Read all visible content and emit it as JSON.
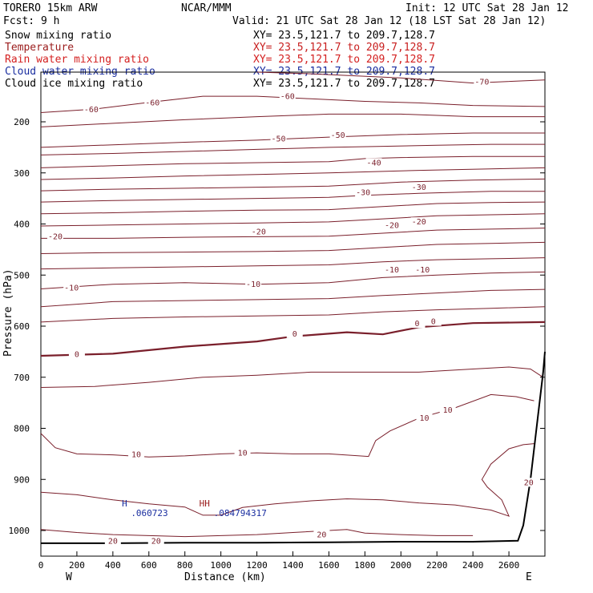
{
  "header": {
    "model": "TORERO  15km ARW",
    "org": "NCAR/MMM",
    "init": "Init: 12 UTC Sat 28 Jan 12",
    "fcst": "Fcst:    9 h",
    "valid": "Valid: 21 UTC Sat 28 Jan 12 (18 LST Sat 28 Jan 12)"
  },
  "fields": [
    {
      "name": "Snow mixing ratio",
      "xy": "XY=  23.5,121.7 to 209.7,128.7",
      "color": "#000000",
      "xy_color": "#000000"
    },
    {
      "name": "Temperature",
      "xy": "XY=  23.5,121.7 to 209.7,128.7",
      "color": "#9b1c1c",
      "xy_color": "#c81e1e"
    },
    {
      "name": "Rain water mixing ratio",
      "xy": "XY=  23.5,121.7 to 209.7,128.7",
      "color": "#d42020",
      "xy_color": "#d42020"
    },
    {
      "name": "Cloud water mixing ratio",
      "xy": "XY=  23.5,121.7 to 209.7,128.7",
      "color": "#1a2ea0",
      "xy_color": "#1a2ea0"
    },
    {
      "name": "Cloud ice mixing ratio",
      "xy": "XY=  23.5,121.7 to 209.7,128.7",
      "color": "#000000",
      "xy_color": "#000000"
    }
  ],
  "chart_data": {
    "type": "line",
    "title": "",
    "xlabel": "Distance (km)",
    "ylabel": "Pressure (hPa)",
    "xlim": [
      0,
      2800
    ],
    "ylim": [
      1050,
      100
    ],
    "x_ticks": [
      0,
      200,
      400,
      600,
      800,
      1000,
      1200,
      1400,
      1600,
      1800,
      2000,
      2200,
      2400,
      2600
    ],
    "y_ticks": [
      200,
      300,
      400,
      500,
      600,
      700,
      800,
      900,
      1000
    ],
    "x_end_labels": {
      "left": "W",
      "right": "E"
    },
    "line_color": "#7a1f2b",
    "terrain_color": "#000000",
    "contour_labels": [
      {
        "text": "-60",
        "x": 280,
        "p": 178
      },
      {
        "text": "-60",
        "x": 620,
        "p": 165
      },
      {
        "text": "-60",
        "x": 1370,
        "p": 152
      },
      {
        "text": "-70",
        "x": 2450,
        "p": 124
      },
      {
        "text": "-50",
        "x": 1320,
        "p": 235
      },
      {
        "text": "-50",
        "x": 1650,
        "p": 228
      },
      {
        "text": "-40",
        "x": 1850,
        "p": 282
      },
      {
        "text": "-30",
        "x": 1790,
        "p": 340
      },
      {
        "text": "-30",
        "x": 2100,
        "p": 330
      },
      {
        "text": "-20",
        "x": 80,
        "p": 427
      },
      {
        "text": "-20",
        "x": 1210,
        "p": 417
      },
      {
        "text": "-20",
        "x": 1950,
        "p": 405
      },
      {
        "text": "-20",
        "x": 2100,
        "p": 398
      },
      {
        "text": "-10",
        "x": 170,
        "p": 527
      },
      {
        "text": "-10",
        "x": 1180,
        "p": 520
      },
      {
        "text": "-10",
        "x": 1950,
        "p": 492
      },
      {
        "text": "-10",
        "x": 2120,
        "p": 492
      },
      {
        "text": "0",
        "x": 200,
        "p": 657
      },
      {
        "text": "0",
        "x": 1410,
        "p": 617
      },
      {
        "text": "0",
        "x": 2090,
        "p": 597
      },
      {
        "text": "0",
        "x": 2180,
        "p": 593
      },
      {
        "text": "10",
        "x": 530,
        "p": 853
      },
      {
        "text": "10",
        "x": 1120,
        "p": 850
      },
      {
        "text": "10",
        "x": 2130,
        "p": 782
      },
      {
        "text": "10",
        "x": 2260,
        "p": 766
      },
      {
        "text": "20",
        "x": 400,
        "p": 1023
      },
      {
        "text": "20",
        "x": 640,
        "p": 1023
      },
      {
        "text": "20",
        "x": 1560,
        "p": 1010
      },
      {
        "text": "20",
        "x": 2710,
        "p": 908
      }
    ],
    "cloud_labels": [
      {
        "text": "H",
        "x": 450,
        "p": 953,
        "color": "#1a2ea0"
      },
      {
        "text": ".060723",
        "x": 500,
        "p": 972,
        "color": "#1a2ea0"
      },
      {
        "text": "HH",
        "x": 880,
        "p": 953,
        "color": "#9b1c1c"
      },
      {
        "text": ".084794317",
        "x": 960,
        "p": 972,
        "color": "#1a2ea0"
      }
    ],
    "isotherms": [
      {
        "level": -70,
        "pts": [
          [
            1200,
            100
          ],
          [
            1500,
            106
          ],
          [
            2000,
            114
          ],
          [
            2400,
            124
          ],
          [
            2800,
            118
          ]
        ]
      },
      {
        "level": -60,
        "pts": [
          [
            0,
            182
          ],
          [
            300,
            175
          ],
          [
            600,
            162
          ],
          [
            900,
            150
          ],
          [
            1200,
            150
          ],
          [
            1500,
            155
          ],
          [
            1800,
            160
          ],
          [
            2100,
            163
          ],
          [
            2400,
            168
          ],
          [
            2800,
            170
          ]
        ]
      },
      {
        "level": -60,
        "pts": [
          [
            0,
            210
          ],
          [
            400,
            203
          ],
          [
            800,
            196
          ],
          [
            1200,
            190
          ],
          [
            1600,
            185
          ],
          [
            2000,
            185
          ],
          [
            2400,
            190
          ],
          [
            2800,
            190
          ]
        ]
      },
      {
        "level": -50,
        "pts": [
          [
            0,
            250
          ],
          [
            400,
            245
          ],
          [
            800,
            240
          ],
          [
            1200,
            236
          ],
          [
            1600,
            230
          ],
          [
            2000,
            225
          ],
          [
            2400,
            222
          ],
          [
            2800,
            222
          ]
        ]
      },
      {
        "level": -50,
        "pts": [
          [
            0,
            265
          ],
          [
            400,
            262
          ],
          [
            800,
            258
          ],
          [
            1200,
            254
          ],
          [
            1600,
            250
          ],
          [
            1900,
            248
          ],
          [
            2200,
            246
          ],
          [
            2500,
            244
          ],
          [
            2800,
            244
          ]
        ]
      },
      {
        "level": -40,
        "pts": [
          [
            0,
            290
          ],
          [
            400,
            286
          ],
          [
            800,
            282
          ],
          [
            1200,
            280
          ],
          [
            1600,
            278
          ],
          [
            1800,
            272
          ],
          [
            2000,
            270
          ],
          [
            2400,
            268
          ],
          [
            2800,
            268
          ]
        ]
      },
      {
        "level": -40,
        "pts": [
          [
            0,
            313
          ],
          [
            400,
            310
          ],
          [
            800,
            306
          ],
          [
            1200,
            303
          ],
          [
            1600,
            300
          ],
          [
            1800,
            298
          ],
          [
            2100,
            295
          ],
          [
            2500,
            292
          ],
          [
            2800,
            290
          ]
        ]
      },
      {
        "level": -30,
        "pts": [
          [
            0,
            335
          ],
          [
            400,
            332
          ],
          [
            800,
            330
          ],
          [
            1200,
            328
          ],
          [
            1600,
            326
          ],
          [
            1800,
            322
          ],
          [
            2000,
            318
          ],
          [
            2400,
            314
          ],
          [
            2800,
            312
          ]
        ]
      },
      {
        "level": -30,
        "pts": [
          [
            0,
            357
          ],
          [
            400,
            354
          ],
          [
            800,
            352
          ],
          [
            1200,
            350
          ],
          [
            1600,
            348
          ],
          [
            1800,
            344
          ],
          [
            2100,
            340
          ],
          [
            2500,
            336
          ],
          [
            2800,
            336
          ]
        ]
      },
      {
        "level": -20,
        "pts": [
          [
            0,
            380
          ],
          [
            400,
            378
          ],
          [
            800,
            375
          ],
          [
            1200,
            373
          ],
          [
            1600,
            372
          ],
          [
            1900,
            366
          ],
          [
            2200,
            360
          ],
          [
            2500,
            358
          ],
          [
            2800,
            357
          ]
        ]
      },
      {
        "level": -20,
        "pts": [
          [
            0,
            404
          ],
          [
            400,
            402
          ],
          [
            800,
            400
          ],
          [
            1200,
            398
          ],
          [
            1600,
            396
          ],
          [
            1900,
            390
          ],
          [
            2200,
            384
          ],
          [
            2500,
            382
          ],
          [
            2800,
            380
          ]
        ]
      },
      {
        "level": -20,
        "pts": [
          [
            0,
            428
          ],
          [
            400,
            428
          ],
          [
            800,
            426
          ],
          [
            1200,
            425
          ],
          [
            1600,
            424
          ],
          [
            1900,
            418
          ],
          [
            2200,
            412
          ],
          [
            2500,
            410
          ],
          [
            2800,
            408
          ]
        ]
      },
      {
        "level": -20,
        "pts": [
          [
            0,
            458
          ],
          [
            400,
            456
          ],
          [
            800,
            455
          ],
          [
            1200,
            454
          ],
          [
            1600,
            452
          ],
          [
            1900,
            446
          ],
          [
            2200,
            440
          ],
          [
            2500,
            438
          ],
          [
            2800,
            436
          ]
        ]
      },
      {
        "level": -10,
        "pts": [
          [
            0,
            488
          ],
          [
            400,
            486
          ],
          [
            800,
            484
          ],
          [
            1200,
            482
          ],
          [
            1600,
            480
          ],
          [
            1900,
            474
          ],
          [
            2200,
            470
          ],
          [
            2500,
            468
          ],
          [
            2800,
            466
          ]
        ]
      },
      {
        "level": -10,
        "pts": [
          [
            0,
            527
          ],
          [
            400,
            518
          ],
          [
            800,
            515
          ],
          [
            1200,
            518
          ],
          [
            1600,
            515
          ],
          [
            1900,
            505
          ],
          [
            2200,
            500
          ],
          [
            2500,
            496
          ],
          [
            2800,
            494
          ]
        ]
      },
      {
        "level": -10,
        "pts": [
          [
            0,
            562
          ],
          [
            400,
            552
          ],
          [
            800,
            550
          ],
          [
            1200,
            548
          ],
          [
            1600,
            546
          ],
          [
            1900,
            540
          ],
          [
            2200,
            535
          ],
          [
            2500,
            530
          ],
          [
            2800,
            528
          ]
        ]
      },
      {
        "level": -10,
        "pts": [
          [
            0,
            592
          ],
          [
            400,
            585
          ],
          [
            800,
            582
          ],
          [
            1200,
            580
          ],
          [
            1600,
            578
          ],
          [
            1900,
            572
          ],
          [
            2200,
            568
          ],
          [
            2500,
            565
          ],
          [
            2800,
            562
          ]
        ]
      },
      {
        "level": 0,
        "pts": [
          [
            0,
            658
          ],
          [
            400,
            654
          ],
          [
            800,
            640
          ],
          [
            1200,
            630
          ],
          [
            1400,
            620
          ],
          [
            1700,
            612
          ],
          [
            1900,
            616
          ],
          [
            2100,
            602
          ],
          [
            2400,
            594
          ],
          [
            2800,
            592
          ]
        ]
      },
      {
        "level": 10,
        "pts": [
          [
            0,
            720
          ],
          [
            300,
            718
          ],
          [
            600,
            710
          ],
          [
            900,
            700
          ],
          [
            1200,
            696
          ],
          [
            1500,
            690
          ],
          [
            1800,
            690
          ],
          [
            2100,
            690
          ],
          [
            2400,
            684
          ],
          [
            2600,
            680
          ],
          [
            2720,
            684
          ],
          [
            2790,
            700
          ]
        ]
      },
      {
        "level": 10,
        "pts": [
          [
            0,
            810
          ],
          [
            80,
            838
          ],
          [
            200,
            850
          ],
          [
            400,
            852
          ],
          [
            600,
            856
          ],
          [
            800,
            854
          ],
          [
            1000,
            850
          ],
          [
            1200,
            848
          ],
          [
            1400,
            850
          ],
          [
            1600,
            850
          ],
          [
            1820,
            855
          ],
          [
            1860,
            824
          ],
          [
            1940,
            805
          ],
          [
            2100,
            780
          ],
          [
            2300,
            760
          ],
          [
            2500,
            734
          ],
          [
            2640,
            738
          ],
          [
            2740,
            746
          ]
        ]
      },
      {
        "level": 20,
        "pts": [
          [
            0,
            925
          ],
          [
            200,
            930
          ],
          [
            400,
            940
          ],
          [
            600,
            948
          ],
          [
            800,
            954
          ],
          [
            900,
            970
          ],
          [
            1000,
            970
          ],
          [
            1120,
            955
          ],
          [
            1300,
            948
          ],
          [
            1500,
            942
          ],
          [
            1700,
            938
          ],
          [
            1900,
            940
          ],
          [
            2100,
            946
          ],
          [
            2300,
            950
          ],
          [
            2500,
            960
          ],
          [
            2600,
            972
          ],
          [
            2560,
            940
          ],
          [
            2480,
            915
          ],
          [
            2450,
            900
          ],
          [
            2500,
            870
          ],
          [
            2600,
            840
          ],
          [
            2680,
            832
          ],
          [
            2740,
            830
          ]
        ]
      },
      {
        "level": 20,
        "pts": [
          [
            0,
            998
          ],
          [
            200,
            1004
          ],
          [
            400,
            1008
          ],
          [
            600,
            1010
          ],
          [
            800,
            1012
          ],
          [
            1000,
            1010
          ],
          [
            1200,
            1008
          ],
          [
            1400,
            1004
          ],
          [
            1600,
            1000
          ],
          [
            1700,
            998
          ],
          [
            1800,
            1005
          ],
          [
            2000,
            1008
          ],
          [
            2200,
            1010
          ],
          [
            2400,
            1010
          ]
        ]
      }
    ],
    "terrain": [
      [
        0,
        1025
      ],
      [
        400,
        1025
      ],
      [
        800,
        1024
      ],
      [
        1200,
        1024
      ],
      [
        1600,
        1023
      ],
      [
        2000,
        1022
      ],
      [
        2400,
        1022
      ],
      [
        2650,
        1020
      ],
      [
        2680,
        990
      ],
      [
        2720,
        900
      ],
      [
        2760,
        780
      ],
      [
        2790,
        690
      ],
      [
        2800,
        650
      ]
    ]
  }
}
